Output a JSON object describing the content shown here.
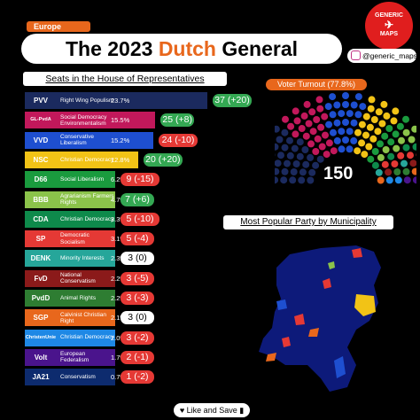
{
  "header": {
    "tag": "Europe",
    "title_prefix": "The 2023 ",
    "title_highlight": "Dutch",
    "title_suffix": " General Elections",
    "logo_top": "GENERIC",
    "logo_bottom": "MAPS",
    "handle": "@generic_maps"
  },
  "seats_header": "Seats in the House of Representatives",
  "turnout_label": "Voter Turnout (77.8%)",
  "total_seats": "150",
  "map_header": "Most Popular Party by Municipality",
  "footer": "Like and Save",
  "colors": {
    "accent": "#e8671c",
    "gain": "#34a853",
    "loss": "#e53935",
    "neutral": "#ffffff"
  },
  "chart_data": {
    "type": "bar",
    "title": "Seats in the House of Representatives",
    "series": [
      {
        "name": "Vote share (%)",
        "values": [
          23.7,
          15.5,
          15.2,
          12.8,
          6.2,
          4.7,
          3.3,
          3.1,
          2.3,
          2.2,
          2.2,
          2.1,
          2.0,
          1.7,
          0.7
        ]
      },
      {
        "name": "Seats",
        "values": [
          37,
          25,
          24,
          20,
          9,
          7,
          5,
          5,
          3,
          3,
          3,
          3,
          3,
          2,
          1
        ]
      },
      {
        "name": "Change",
        "values": [
          20,
          8,
          -10,
          20,
          -15,
          6,
          -10,
          -4,
          0,
          -5,
          -3,
          0,
          -2,
          -1,
          -2
        ]
      }
    ],
    "parties": [
      {
        "logo": "PVV",
        "name": "Right Wing Populism",
        "pct": "23.7%",
        "pct_value": 23.7,
        "seats": "37",
        "change": "(+20)",
        "change_value": 20,
        "color": "#1b2a5e"
      },
      {
        "logo": "GL-PvdA",
        "name": "Social Democracy Environmentalism",
        "pct": "15.5%",
        "pct_value": 15.5,
        "seats": "25",
        "change": "(+8)",
        "change_value": 8,
        "color": "#c2185b"
      },
      {
        "logo": "VVD",
        "name": "Conservative Liberalism",
        "pct": "15.2%",
        "pct_value": 15.2,
        "seats": "24",
        "change": "(-10)",
        "change_value": -10,
        "color": "#1e4fd0"
      },
      {
        "logo": "NSC",
        "name": "Christian Democracy",
        "pct": "12.8%",
        "pct_value": 12.8,
        "seats": "20",
        "change": "(+20)",
        "change_value": 20,
        "color": "#f2c316"
      },
      {
        "logo": "D66",
        "name": "Social Liberalism",
        "pct": "6.2%",
        "pct_value": 6.2,
        "seats": "9",
        "change": "(-15)",
        "change_value": -15,
        "color": "#1a9b3e"
      },
      {
        "logo": "BBB",
        "name": "Agrarianism Farmers Rights",
        "pct": "4.7%",
        "pct_value": 4.7,
        "seats": "7",
        "change": "(+6)",
        "change_value": 6,
        "color": "#8bc34a"
      },
      {
        "logo": "CDA",
        "name": "Christian Democracy",
        "pct": "3.3%",
        "pct_value": 3.3,
        "seats": "5",
        "change": "(-10)",
        "change_value": -10,
        "color": "#0e8a4b"
      },
      {
        "logo": "SP",
        "name": "Democratic Socialism",
        "pct": "3.1%",
        "pct_value": 3.1,
        "seats": "5",
        "change": "(-4)",
        "change_value": -4,
        "color": "#e53935"
      },
      {
        "logo": "DENK",
        "name": "Minority Interests",
        "pct": "2.3%",
        "pct_value": 2.3,
        "seats": "3",
        "change": "(0)",
        "change_value": 0,
        "color": "#26a69a"
      },
      {
        "logo": "FvD",
        "name": "National Conservatism",
        "pct": "2.2%",
        "pct_value": 2.2,
        "seats": "3",
        "change": "(-5)",
        "change_value": -5,
        "color": "#8b1a1a"
      },
      {
        "logo": "PvdD",
        "name": "Animal Rights",
        "pct": "2.2%",
        "pct_value": 2.2,
        "seats": "3",
        "change": "(-3)",
        "change_value": -3,
        "color": "#2e7d32"
      },
      {
        "logo": "SGP",
        "name": "Calvinist Christian Right",
        "pct": "2.1%",
        "pct_value": 2.1,
        "seats": "3",
        "change": "(0)",
        "change_value": 0,
        "color": "#e8671c"
      },
      {
        "logo": "ChristenUnie",
        "name": "Christian Democracy",
        "pct": "2.0%",
        "pct_value": 2.0,
        "seats": "3",
        "change": "(-2)",
        "change_value": -2,
        "color": "#1e88e5"
      },
      {
        "logo": "Volt",
        "name": "European Federalism",
        "pct": "1.7%",
        "pct_value": 1.7,
        "seats": "2",
        "change": "(-1)",
        "change_value": -1,
        "color": "#4a148c"
      },
      {
        "logo": "JA21",
        "name": "Conservatism",
        "pct": "0.7%",
        "pct_value": 0.7,
        "seats": "1",
        "change": "(-2)",
        "change_value": -2,
        "color": "#0d2b6e"
      }
    ]
  }
}
